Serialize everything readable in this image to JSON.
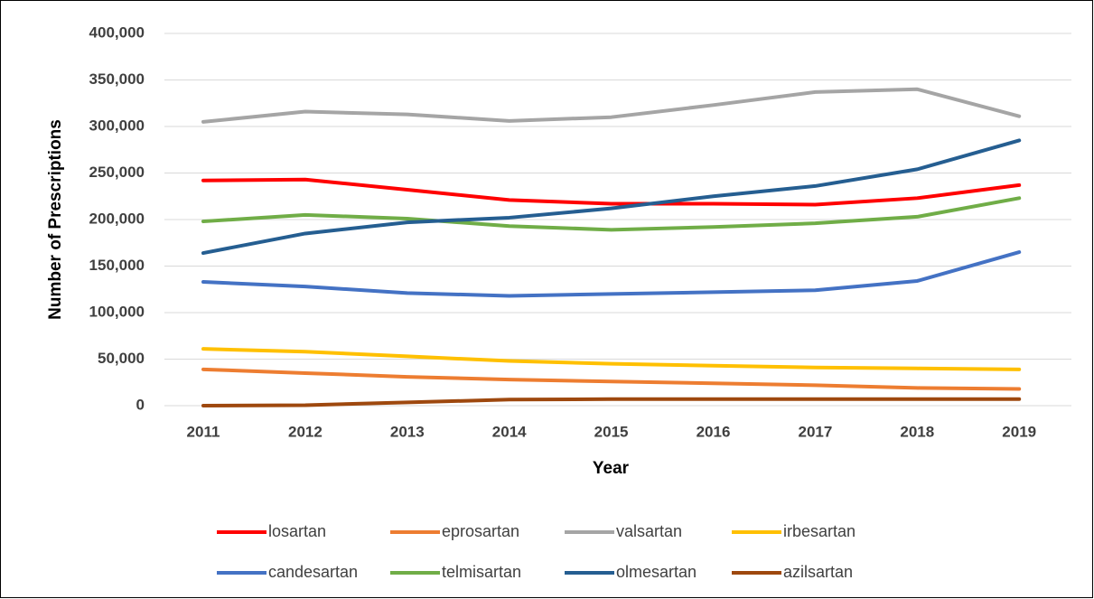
{
  "chart_data": {
    "type": "line",
    "x_label": "Year",
    "y_label": "Number of Prescriptions",
    "categories": [
      "2011",
      "2012",
      "2013",
      "2014",
      "2015",
      "2016",
      "2017",
      "2018",
      "2019"
    ],
    "series": [
      {
        "name": "losartan",
        "color": "#ff0000",
        "values": [
          242000,
          243000,
          232000,
          221000,
          217000,
          217000,
          216000,
          223000,
          237000
        ]
      },
      {
        "name": "eprosartan",
        "color": "#ed7d31",
        "values": [
          39000,
          35000,
          31000,
          28000,
          26000,
          24000,
          22000,
          19000,
          18000
        ]
      },
      {
        "name": "valsartan",
        "color": "#a5a5a5",
        "values": [
          305000,
          316000,
          313000,
          306000,
          310000,
          323000,
          337000,
          340000,
          311000
        ]
      },
      {
        "name": "irbesartan",
        "color": "#ffc000",
        "values": [
          61000,
          58000,
          53000,
          48000,
          45000,
          43000,
          41000,
          40000,
          39000
        ]
      },
      {
        "name": "candesartan",
        "color": "#4472c4",
        "values": [
          133000,
          128000,
          121000,
          118000,
          120000,
          122000,
          124000,
          134000,
          165000
        ]
      },
      {
        "name": "telmisartan",
        "color": "#70ad47",
        "values": [
          198000,
          205000,
          201000,
          193000,
          189000,
          192000,
          196000,
          203000,
          223000
        ]
      },
      {
        "name": "olmesartan",
        "color": "#255e91",
        "values": [
          164000,
          185000,
          197000,
          202000,
          212000,
          225000,
          236000,
          254000,
          285000
        ]
      },
      {
        "name": "azilsartan",
        "color": "#9e480e",
        "values": [
          0,
          500,
          3500,
          6500,
          7000,
          7000,
          7000,
          7000,
          7000
        ]
      }
    ],
    "ylim": [
      0,
      400000
    ],
    "yticks": [
      0,
      {
        "value": 50000,
        "label": "50,000"
      },
      {
        "value": 100000,
        "label": "100,000"
      },
      {
        "value": 150000,
        "label": "150,000"
      },
      {
        "value": 200000,
        "label": "200,000"
      },
      {
        "value": 250000,
        "label": "250,000"
      },
      {
        "value": 300000,
        "label": "300,000"
      },
      {
        "value": 350000,
        "label": "350,000"
      },
      {
        "value": 400000,
        "label": "400,000"
      }
    ],
    "grid": true,
    "legend": "bottom"
  }
}
